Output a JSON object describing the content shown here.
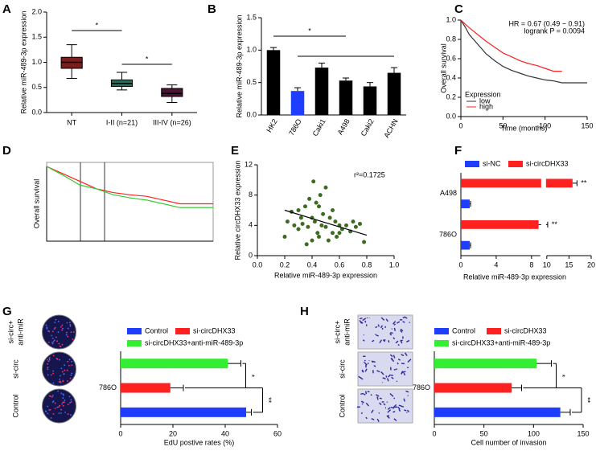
{
  "chart_data": [
    {
      "type": "box",
      "label": "A",
      "ylabel": "Relative miR-489-3p expression",
      "categories": [
        "NT",
        "I-II (n=21)",
        "III-IV (n=26)"
      ],
      "boxes": [
        {
          "min": 0.68,
          "q1": 0.88,
          "median": 1.0,
          "q3": 1.1,
          "max": 1.35
        },
        {
          "min": 0.45,
          "q1": 0.52,
          "median": 0.58,
          "q3": 0.65,
          "max": 0.8
        },
        {
          "min": 0.2,
          "q1": 0.32,
          "median": 0.38,
          "q3": 0.48,
          "max": 0.55
        }
      ],
      "colors": [
        "#7b1d1d",
        "#2e6b5a",
        "#4a1535"
      ],
      "ylim": [
        0,
        2
      ],
      "yticks": [
        {
          "value": 0,
          "label": "0.0"
        },
        0.5,
        {
          "value": 1,
          "label": "1.0"
        },
        1.5,
        {
          "value": 2,
          "label": "2.0"
        }
      ],
      "annotations": [
        "*",
        "*"
      ]
    },
    {
      "type": "bar",
      "label": "B",
      "ylabel": "Relative miR-489-3p expression",
      "categories": [
        "HK2",
        "786O",
        "Caki1",
        "A498",
        "Caki2",
        "ACHN"
      ],
      "values": [
        1.0,
        0.37,
        0.73,
        0.53,
        0.44,
        0.65
      ],
      "errors": [
        0.04,
        0.05,
        0.07,
        0.04,
        0.06,
        0.08
      ],
      "colors": [
        "#000000",
        "#1f3dff",
        "#000000",
        "#000000",
        "#000000",
        "#000000"
      ],
      "ylim": [
        0,
        1.5
      ],
      "yticks": [
        {
          "value": 0,
          "label": "0.0"
        },
        0.5,
        {
          "value": 1,
          "label": "1.0"
        },
        1.5
      ],
      "annotations": [
        "*"
      ]
    },
    {
      "type": "line",
      "label": "C",
      "xlabel": "Time (months)",
      "ylabel": "Overall survival",
      "xlim": [
        0,
        150
      ],
      "xticks": [
        0,
        50,
        100,
        150
      ],
      "ylim": [
        0,
        1
      ],
      "yticks": [
        {
          "value": 0,
          "label": "0.0"
        },
        0.2,
        0.4,
        0.6,
        0.8,
        {
          "value": 1,
          "label": "1.0"
        }
      ],
      "legend_title": "Expression",
      "series": [
        {
          "name": "low",
          "color": "#333333",
          "x": [
            0,
            5,
            10,
            20,
            30,
            40,
            50,
            60,
            70,
            80,
            90,
            100,
            110,
            120,
            130,
            150
          ],
          "values": [
            1,
            0.93,
            0.85,
            0.75,
            0.65,
            0.58,
            0.52,
            0.48,
            0.45,
            0.42,
            0.4,
            0.38,
            0.37,
            0.35,
            0.35,
            0.35
          ]
        },
        {
          "name": "high",
          "color": "#ff2020",
          "x": [
            0,
            5,
            10,
            20,
            30,
            40,
            50,
            60,
            70,
            80,
            90,
            100,
            110,
            120
          ],
          "values": [
            1,
            0.96,
            0.92,
            0.85,
            0.78,
            0.72,
            0.66,
            0.62,
            0.58,
            0.55,
            0.53,
            0.5,
            0.47,
            0.47
          ]
        }
      ],
      "annotations": [
        "HR = 0.67 (0.49 − 0.91)",
        "logrank P = 0.0094"
      ]
    },
    {
      "type": "line",
      "label": "D",
      "ylabel": "Overall survival",
      "xlim": [
        0,
        100
      ],
      "ylim": [
        0,
        1
      ],
      "series": [
        {
          "color": "#ff2020",
          "x": [
            0,
            10,
            20,
            30,
            40,
            50,
            60,
            70,
            80,
            90,
            100
          ],
          "values": [
            1,
            0.9,
            0.8,
            0.7,
            0.65,
            0.62,
            0.6,
            0.55,
            0.5,
            0.5,
            0.5
          ]
        },
        {
          "color": "#33cc33",
          "x": [
            0,
            10,
            20,
            30,
            40,
            50,
            60,
            70,
            80,
            90,
            100
          ],
          "values": [
            1,
            0.88,
            0.75,
            0.7,
            0.62,
            0.58,
            0.55,
            0.5,
            0.45,
            0.45,
            0.45
          ]
        }
      ]
    },
    {
      "type": "scatter",
      "label": "E",
      "xlabel": "Relative miR-489-3p expression",
      "ylabel": "Relative circDHX33 expression",
      "xlim": [
        0,
        1
      ],
      "xticks": [
        {
          "value": 0,
          "label": "0.0"
        },
        0.2,
        0.4,
        0.6,
        0.8,
        {
          "value": 1,
          "label": "1.0"
        }
      ],
      "ylim": [
        0,
        12
      ],
      "yticks": [
        0,
        4,
        8,
        12
      ],
      "color": "#3d6b1f",
      "x": [
        0.2,
        0.22,
        0.25,
        0.27,
        0.3,
        0.3,
        0.32,
        0.33,
        0.35,
        0.36,
        0.37,
        0.38,
        0.4,
        0.4,
        0.41,
        0.42,
        0.43,
        0.44,
        0.45,
        0.45,
        0.46,
        0.47,
        0.48,
        0.5,
        0.5,
        0.52,
        0.53,
        0.55,
        0.55,
        0.57,
        0.58,
        0.6,
        0.6,
        0.62,
        0.65,
        0.68,
        0.7,
        0.72,
        0.75,
        0.78
      ],
      "values": [
        2.5,
        4.5,
        5.8,
        4,
        3.5,
        6,
        5,
        4.2,
        6.5,
        1.5,
        3.8,
        7.5,
        5,
        2,
        9.8,
        4.5,
        7,
        3,
        6.5,
        2.5,
        8,
        4,
        5.5,
        9,
        3.8,
        2,
        5,
        6,
        3,
        4.5,
        2.5,
        3,
        4,
        3.5,
        4,
        3.2,
        4.5,
        3.8,
        4.2,
        1.8
      ],
      "fit": {
        "x": [
          0.2,
          0.8
        ],
        "y": [
          6.0,
          2.7
        ]
      },
      "annotations": [
        "r²=0.1725"
      ]
    },
    {
      "type": "hbar",
      "label": "F",
      "xlabel": "Relative miR-489-3p expression",
      "categories": [
        "A498",
        "786O"
      ],
      "series": [
        {
          "name": "si-NC",
          "color": "#1f3dff",
          "values": [
            1.0,
            1.0
          ],
          "errors": [
            0.1,
            0.1
          ]
        },
        {
          "name": "si-circDHX33",
          "color": "#ff2020",
          "values": [
            15.8,
            8.8
          ],
          "errors": [
            1.0,
            1.4
          ]
        }
      ],
      "xlim": [
        0,
        20
      ],
      "xticks": [
        0,
        4,
        8,
        10,
        15,
        20
      ],
      "axis_break": [
        9,
        10
      ],
      "annotations": [
        "**",
        "**"
      ]
    },
    {
      "type": "hbar",
      "label": "G",
      "xlabel": "EdU postive rates (%)",
      "image_labels": [
        [
          "si-circ+",
          "anti-miR"
        ],
        [
          "si-circ"
        ],
        [
          "Control"
        ]
      ],
      "categories": [
        "786O"
      ],
      "series": [
        {
          "name": "Control",
          "color": "#1f3dff",
          "values": [
            48
          ],
          "errors": [
            2
          ]
        },
        {
          "name": "si-circDHX33",
          "color": "#ff2020",
          "values": [
            19
          ],
          "errors": [
            5
          ]
        },
        {
          "name": "si-circDHX33+anti-miR-489-3p",
          "color": "#33ee33",
          "values": [
            41
          ],
          "errors": [
            5
          ]
        }
      ],
      "xlim": [
        0,
        60
      ],
      "xticks": [
        0,
        20,
        40,
        60
      ],
      "annotations": [
        "*",
        "**"
      ]
    },
    {
      "type": "hbar",
      "label": "H",
      "xlabel": "Cell number of invasion",
      "image_labels": [
        [
          "si-circ+",
          "anti-miR"
        ],
        [
          "si-circ"
        ],
        [
          "Control"
        ]
      ],
      "categories": [
        "786O"
      ],
      "series": [
        {
          "name": "Control",
          "color": "#1f3dff",
          "values": [
            127
          ],
          "errors": [
            10
          ]
        },
        {
          "name": "si-circDHX33",
          "color": "#ff2020",
          "values": [
            78
          ],
          "errors": [
            10
          ]
        },
        {
          "name": "si-circDHX33+anti-miR-489-3p",
          "color": "#33ee33",
          "values": [
            103
          ],
          "errors": [
            15
          ]
        }
      ],
      "xlim": [
        0,
        150
      ],
      "xticks": [
        0,
        50,
        100,
        150
      ],
      "annotations": [
        "*",
        "**"
      ]
    }
  ]
}
